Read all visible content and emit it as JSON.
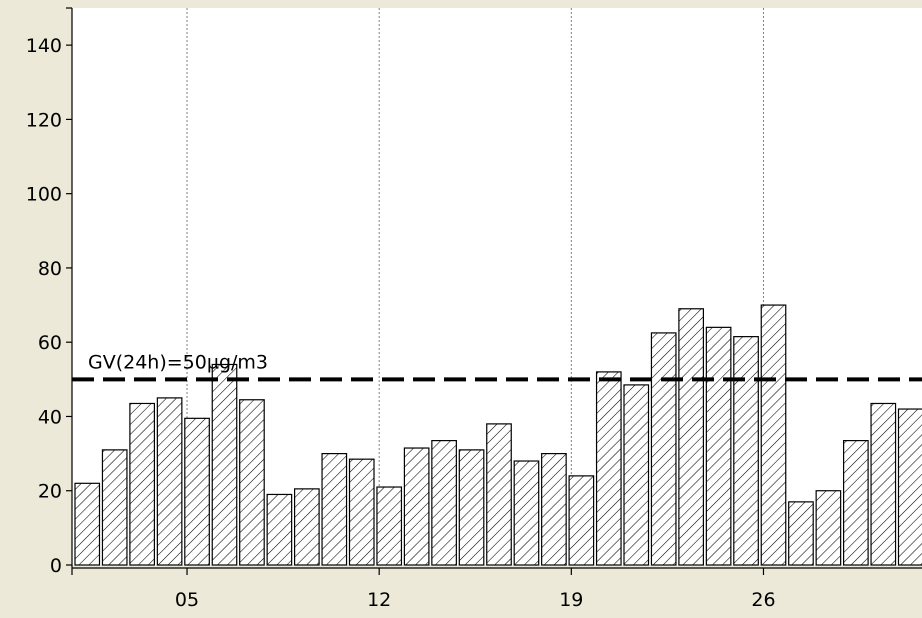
{
  "chart_data": {
    "type": "bar",
    "title": "",
    "xlabel": "",
    "ylabel": "",
    "ylim": [
      0,
      150
    ],
    "y_ticks": [
      0,
      20,
      40,
      60,
      80,
      100,
      120,
      140
    ],
    "x_tick_labels": [
      {
        "day": 5,
        "label": "05"
      },
      {
        "day": 12,
        "label": "12"
      },
      {
        "day": 19,
        "label": "19"
      },
      {
        "day": 26,
        "label": "26"
      }
    ],
    "days": [
      1,
      2,
      3,
      4,
      5,
      6,
      7,
      8,
      9,
      10,
      11,
      12,
      13,
      14,
      15,
      16,
      17,
      18,
      19,
      20,
      21,
      22,
      23,
      24,
      25,
      26,
      27,
      28,
      29,
      30,
      31
    ],
    "values": [
      22,
      31,
      43.5,
      45,
      39.5,
      54,
      44.5,
      19,
      20.5,
      30,
      28.5,
      21,
      31.5,
      33.5,
      31,
      38,
      28,
      30,
      24,
      52,
      48.5,
      62.5,
      69,
      64,
      61.5,
      70,
      17,
      20,
      33.5,
      43.5,
      42
    ],
    "reference_line": {
      "value": 50,
      "label": "GV(24h)=50µg/m3",
      "style": "dashed"
    },
    "grid": {
      "vertical": true,
      "horizontal": false
    },
    "bar_fill": "hatched",
    "colors": {
      "background": "#ece9d8",
      "plot_background": "#ffffff",
      "bar_stroke": "#000000",
      "grid": "#808080"
    }
  }
}
